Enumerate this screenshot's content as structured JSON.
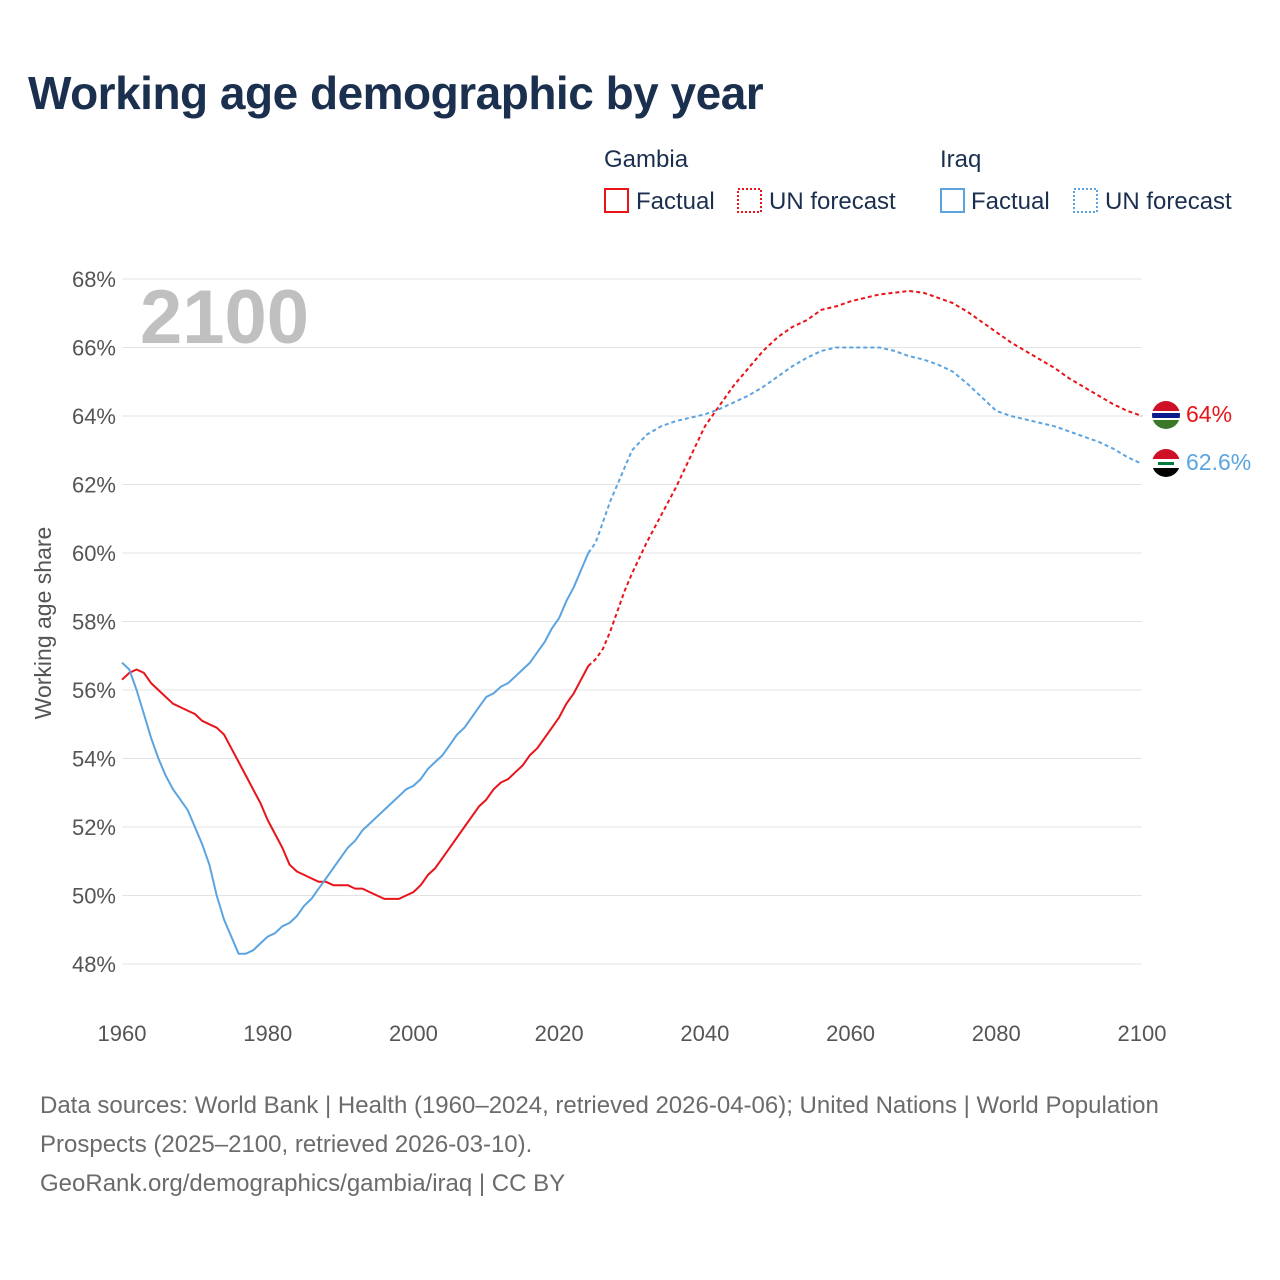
{
  "title": "Working age demographic by year",
  "sources": {
    "line1": "Data sources: World Bank | Health (1960–2024, retrieved 2026-04-06); United Nations | World Population Prospects (2025–2100, retrieved 2026-03-10).",
    "line2": "GeoRank.org/demographics/gambia/iraq | CC BY"
  },
  "chart_data": {
    "type": "line",
    "title": "Working age demographic by year",
    "year_overlay": "2100",
    "ylabel": "Working age share",
    "xlabel": "",
    "xlim": [
      1960,
      2100
    ],
    "ylim": [
      47,
      68.5
    ],
    "x_ticks": [
      1960,
      1980,
      2000,
      2020,
      2040,
      2060,
      2080,
      2100
    ],
    "y_ticks": [
      48,
      50,
      52,
      54,
      56,
      58,
      60,
      62,
      64,
      66,
      68
    ],
    "y_tick_format": "%",
    "grid": true,
    "legend": {
      "placement": "top-right",
      "groups": [
        {
          "country": "Gambia",
          "factual_label": "Factual",
          "forecast_label": "UN forecast",
          "color": "#e8141a"
        },
        {
          "country": "Iraq",
          "factual_label": "Factual",
          "forecast_label": "UN forecast",
          "color": "#5ba4e0"
        }
      ]
    },
    "series": [
      {
        "name": "Gambia",
        "color": "#e8141a",
        "flag": "gambia-flag",
        "end_label": "64%",
        "factual": {
          "x": [
            1960,
            1961,
            1962,
            1963,
            1964,
            1965,
            1966,
            1967,
            1968,
            1969,
            1970,
            1971,
            1972,
            1973,
            1974,
            1975,
            1976,
            1977,
            1978,
            1979,
            1980,
            1981,
            1982,
            1983,
            1984,
            1985,
            1986,
            1987,
            1988,
            1989,
            1990,
            1991,
            1992,
            1993,
            1994,
            1995,
            1996,
            1997,
            1998,
            1999,
            2000,
            2001,
            2002,
            2003,
            2004,
            2005,
            2006,
            2007,
            2008,
            2009,
            2010,
            2011,
            2012,
            2013,
            2014,
            2015,
            2016,
            2017,
            2018,
            2019,
            2020,
            2021,
            2022,
            2023,
            2024
          ],
          "values": [
            56.3,
            56.5,
            56.6,
            56.5,
            56.2,
            56.0,
            55.8,
            55.6,
            55.5,
            55.4,
            55.3,
            55.1,
            55.0,
            54.9,
            54.7,
            54.3,
            53.9,
            53.5,
            53.1,
            52.7,
            52.2,
            51.8,
            51.4,
            50.9,
            50.7,
            50.6,
            50.5,
            50.4,
            50.4,
            50.3,
            50.3,
            50.3,
            50.2,
            50.2,
            50.1,
            50.0,
            49.9,
            49.9,
            49.9,
            50.0,
            50.1,
            50.3,
            50.6,
            50.8,
            51.1,
            51.4,
            51.7,
            52.0,
            52.3,
            52.6,
            52.8,
            53.1,
            53.3,
            53.4,
            53.6,
            53.8,
            54.1,
            54.3,
            54.6,
            54.9,
            55.2,
            55.6,
            55.9,
            56.3,
            56.7
          ]
        },
        "forecast": {
          "x": [
            2024,
            2025,
            2026,
            2027,
            2028,
            2029,
            2030,
            2032,
            2034,
            2036,
            2038,
            2040,
            2042,
            2044,
            2046,
            2048,
            2050,
            2052,
            2054,
            2056,
            2058,
            2060,
            2062,
            2064,
            2066,
            2068,
            2070,
            2072,
            2074,
            2076,
            2078,
            2080,
            2082,
            2084,
            2086,
            2088,
            2090,
            2092,
            2094,
            2096,
            2098,
            2100
          ],
          "values": [
            56.7,
            56.9,
            57.2,
            57.7,
            58.3,
            58.9,
            59.4,
            60.3,
            61.1,
            61.9,
            62.8,
            63.7,
            64.3,
            64.9,
            65.4,
            65.9,
            66.3,
            66.6,
            66.8,
            67.1,
            67.2,
            67.35,
            67.45,
            67.55,
            67.6,
            67.65,
            67.6,
            67.45,
            67.3,
            67.05,
            66.75,
            66.45,
            66.15,
            65.9,
            65.65,
            65.4,
            65.1,
            64.85,
            64.6,
            64.35,
            64.15,
            64.0
          ]
        }
      },
      {
        "name": "Iraq",
        "color": "#5ba4e0",
        "flag": "iraq-flag",
        "end_label": "62.6%",
        "factual": {
          "x": [
            1960,
            1961,
            1962,
            1963,
            1964,
            1965,
            1966,
            1967,
            1968,
            1969,
            1970,
            1971,
            1972,
            1973,
            1974,
            1975,
            1976,
            1977,
            1978,
            1979,
            1980,
            1981,
            1982,
            1983,
            1984,
            1985,
            1986,
            1987,
            1988,
            1989,
            1990,
            1991,
            1992,
            1993,
            1994,
            1995,
            1996,
            1997,
            1998,
            1999,
            2000,
            2001,
            2002,
            2003,
            2004,
            2005,
            2006,
            2007,
            2008,
            2009,
            2010,
            2011,
            2012,
            2013,
            2014,
            2015,
            2016,
            2017,
            2018,
            2019,
            2020,
            2021,
            2022,
            2023,
            2024
          ],
          "values": [
            56.8,
            56.6,
            56.0,
            55.3,
            54.6,
            54.0,
            53.5,
            53.1,
            52.8,
            52.5,
            52.0,
            51.5,
            50.9,
            50.0,
            49.3,
            48.8,
            48.3,
            48.3,
            48.4,
            48.6,
            48.8,
            48.9,
            49.1,
            49.2,
            49.4,
            49.7,
            49.9,
            50.2,
            50.5,
            50.8,
            51.1,
            51.4,
            51.6,
            51.9,
            52.1,
            52.3,
            52.5,
            52.7,
            52.9,
            53.1,
            53.2,
            53.4,
            53.7,
            53.9,
            54.1,
            54.4,
            54.7,
            54.9,
            55.2,
            55.5,
            55.8,
            55.9,
            56.1,
            56.2,
            56.4,
            56.6,
            56.8,
            57.1,
            57.4,
            57.8,
            58.1,
            58.6,
            59.0,
            59.5,
            60.0
          ]
        },
        "forecast": {
          "x": [
            2024,
            2025,
            2026,
            2027,
            2028,
            2029,
            2030,
            2032,
            2034,
            2036,
            2038,
            2040,
            2042,
            2044,
            2046,
            2048,
            2050,
            2052,
            2054,
            2056,
            2058,
            2060,
            2062,
            2064,
            2066,
            2068,
            2070,
            2072,
            2074,
            2076,
            2078,
            2080,
            2082,
            2084,
            2086,
            2088,
            2090,
            2092,
            2094,
            2096,
            2098,
            2100
          ],
          "values": [
            60.0,
            60.3,
            60.9,
            61.5,
            62.0,
            62.5,
            63.0,
            63.45,
            63.7,
            63.85,
            63.95,
            64.05,
            64.2,
            64.4,
            64.6,
            64.85,
            65.15,
            65.45,
            65.7,
            65.9,
            66.0,
            66.0,
            66.0,
            66.0,
            65.9,
            65.75,
            65.65,
            65.5,
            65.3,
            64.95,
            64.55,
            64.15,
            64.0,
            63.9,
            63.8,
            63.7,
            63.55,
            63.4,
            63.25,
            63.05,
            62.8,
            62.6
          ]
        }
      }
    ]
  }
}
